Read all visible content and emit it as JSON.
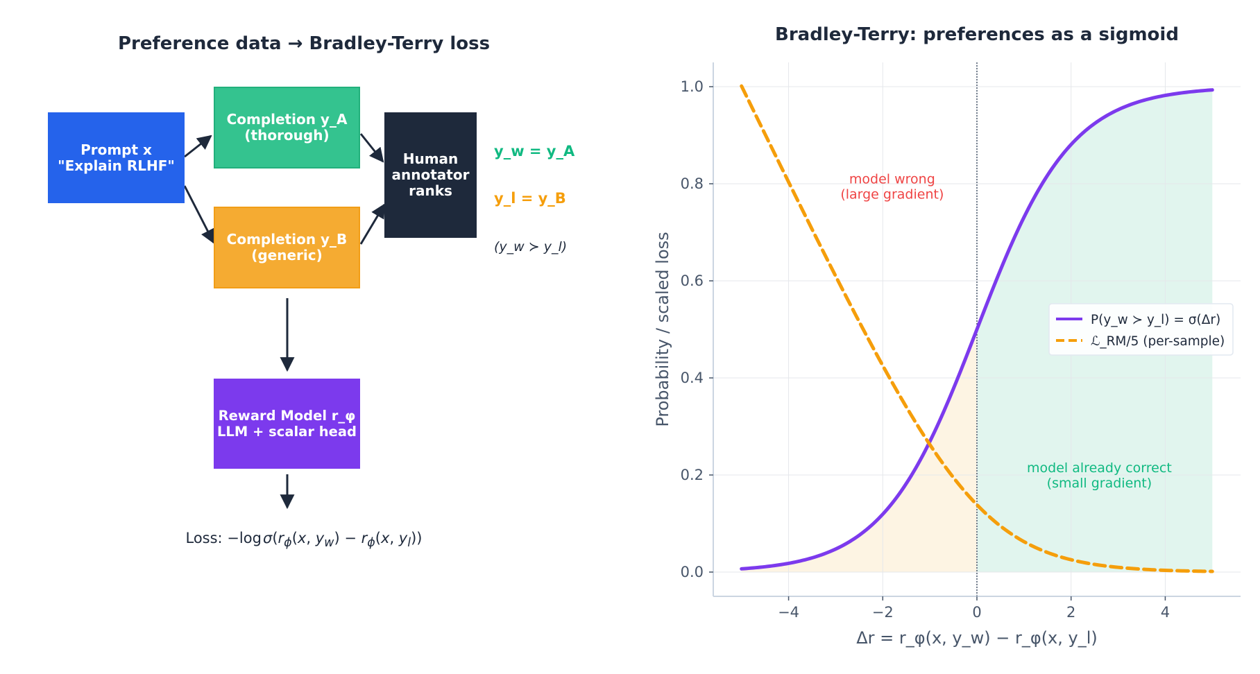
{
  "left": {
    "title": "Preference data → Bradley-Terry loss",
    "prompt_label": "Prompt x\n\"Explain RLHF\"",
    "completion_a_label": "Completion y_A\n(thorough)",
    "completion_b_label": "Completion y_B\n(generic)",
    "annotator_label": "Human\nannotator\nranks",
    "reward_model_label": "Reward Model r_φ\nLLM + scalar head",
    "yw_text": "y_w = y_A",
    "yl_text": "y_l = y_B",
    "pref_text": "(y_w ≻ y_l)",
    "loss_prefix": "Loss: ",
    "colors": {
      "prompt": "#2563eb",
      "completion_a": "#34c38f",
      "completion_b": "#f5ab32",
      "annotator": "#1e293b",
      "reward_model": "#7c3aed",
      "yw": "#10b981",
      "yl": "#f59e0b"
    }
  },
  "chart_data": {
    "type": "line",
    "title": "Bradley-Terry: preferences as a sigmoid",
    "xlabel": "Δr = r_φ(x, y_w) − r_φ(x, y_l)",
    "ylabel": "Probability / scaled loss",
    "xlim": [
      -5.6,
      5.6
    ],
    "ylim": [
      -0.05,
      1.05
    ],
    "xticks": [
      -4,
      -2,
      0,
      2,
      4
    ],
    "xtick_labels": [
      "−4",
      "−2",
      "0",
      "2",
      "4"
    ],
    "yticks": [
      0.0,
      0.2,
      0.4,
      0.6,
      0.8,
      1.0
    ],
    "ytick_labels": [
      "0.0",
      "0.2",
      "0.4",
      "0.6",
      "0.8",
      "1.0"
    ],
    "grid": true,
    "legend_position": "center-right",
    "x": [
      -5,
      -4.5,
      -4,
      -3.5,
      -3,
      -2.5,
      -2,
      -1.5,
      -1,
      -0.5,
      0,
      0.5,
      1,
      1.5,
      2,
      2.5,
      3,
      3.5,
      4,
      4.5,
      5
    ],
    "series": [
      {
        "name": "P(y_w ≻ y_l) = σ(Δr)",
        "style": "solid",
        "color": "#7c3aed",
        "values": [
          0.0067,
          0.011,
          0.018,
          0.029,
          0.047,
          0.076,
          0.119,
          0.182,
          0.269,
          0.378,
          0.5,
          0.622,
          0.731,
          0.818,
          0.881,
          0.924,
          0.953,
          0.971,
          0.982,
          0.989,
          0.993
        ]
      },
      {
        "name": "ℒ_RM/5 (per-sample)",
        "style": "dashed",
        "color": "#f59e0b",
        "values": [
          1.0013,
          0.9022,
          0.8036,
          0.7058,
          0.6097,
          0.5157,
          0.4254,
          0.3403,
          0.2627,
          0.1949,
          0.1386,
          0.0949,
          0.0627,
          0.0403,
          0.0254,
          0.0157,
          0.0097,
          0.0058,
          0.0036,
          0.0022,
          0.0013
        ]
      }
    ],
    "annotations": [
      {
        "text": "model wrong\n(large gradient)",
        "color": "#ef4444"
      },
      {
        "text": "model already correct\n(small gradient)",
        "color": "#10b981"
      }
    ],
    "shade_left_color": "#fdf4e3",
    "shade_right_color": "#e1f5ee"
  }
}
